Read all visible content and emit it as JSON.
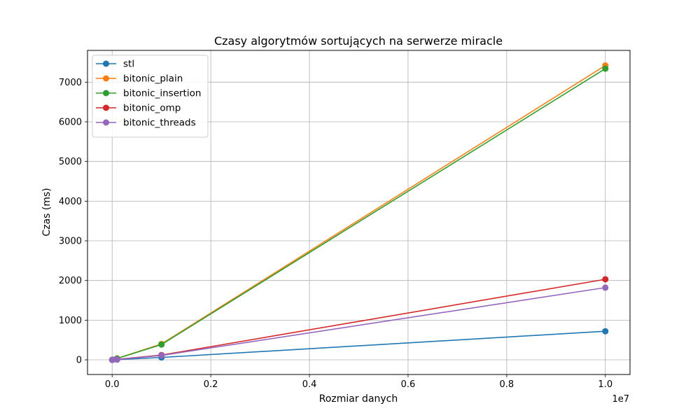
{
  "chart_data": {
    "type": "line",
    "title": "Czasy algorytmów sortujących na serwerze miracle",
    "xlabel": "Rozmiar danych",
    "ylabel": "Czas (ms)",
    "x_offset_text": "1e7",
    "x_scale_factor": 10000000,
    "x": [
      1000,
      10000,
      100000,
      1000000,
      10000000
    ],
    "xlim": [
      -0.05,
      1.05
    ],
    "ylim": [
      -370,
      7800
    ],
    "xticks": [
      0.0,
      0.2,
      0.4,
      0.6,
      0.8,
      1.0
    ],
    "xtick_labels": [
      "0.0",
      "0.2",
      "0.4",
      "0.6",
      "0.8",
      "1.0"
    ],
    "yticks": [
      0,
      1000,
      2000,
      3000,
      4000,
      5000,
      6000,
      7000
    ],
    "ytick_labels": [
      "0",
      "1000",
      "2000",
      "3000",
      "4000",
      "5000",
      "6000",
      "7000"
    ],
    "grid": true,
    "legend_position": "top-left",
    "series": [
      {
        "name": "stl",
        "color": "#1f77b4",
        "values": [
          0.1,
          0.8,
          5,
          60,
          720
        ]
      },
      {
        "name": "bitonic_plain",
        "color": "#ff7f0e",
        "values": [
          0.3,
          3,
          35,
          400,
          7420
        ]
      },
      {
        "name": "bitonic_insertion",
        "color": "#2ca02c",
        "values": [
          0.3,
          3,
          33,
          385,
          7340
        ]
      },
      {
        "name": "bitonic_omp",
        "color": "#d62728",
        "values": [
          0.2,
          2,
          12,
          120,
          2030
        ]
      },
      {
        "name": "bitonic_threads",
        "color": "#9467bd",
        "values": [
          0.2,
          2,
          11,
          110,
          1820
        ]
      }
    ]
  }
}
